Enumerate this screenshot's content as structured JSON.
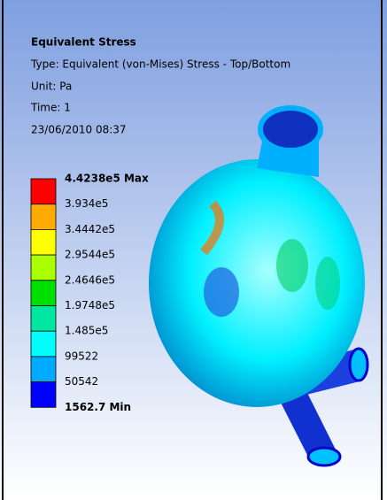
{
  "header": {
    "title": "Equivalent Stress",
    "type": "Type: Equivalent (von-Mises) Stress - Top/Bottom",
    "unit": "Unit: Pa",
    "time": "Time: 1",
    "date": "23/06/2010 08:37"
  },
  "legend": {
    "labels": [
      "4.4238e5 Max",
      "3.934e5",
      "3.4442e5",
      "2.9544e5",
      "2.4646e5",
      "1.9748e5",
      "1.485e5",
      "99522",
      "50542",
      "1562.7 Min"
    ],
    "colors": [
      "#ff0000",
      "#ffaa00",
      "#ffff00",
      "#aaff00",
      "#00e000",
      "#00e8a0",
      "#00ffff",
      "#00aaff",
      "#0000ff"
    ]
  }
}
